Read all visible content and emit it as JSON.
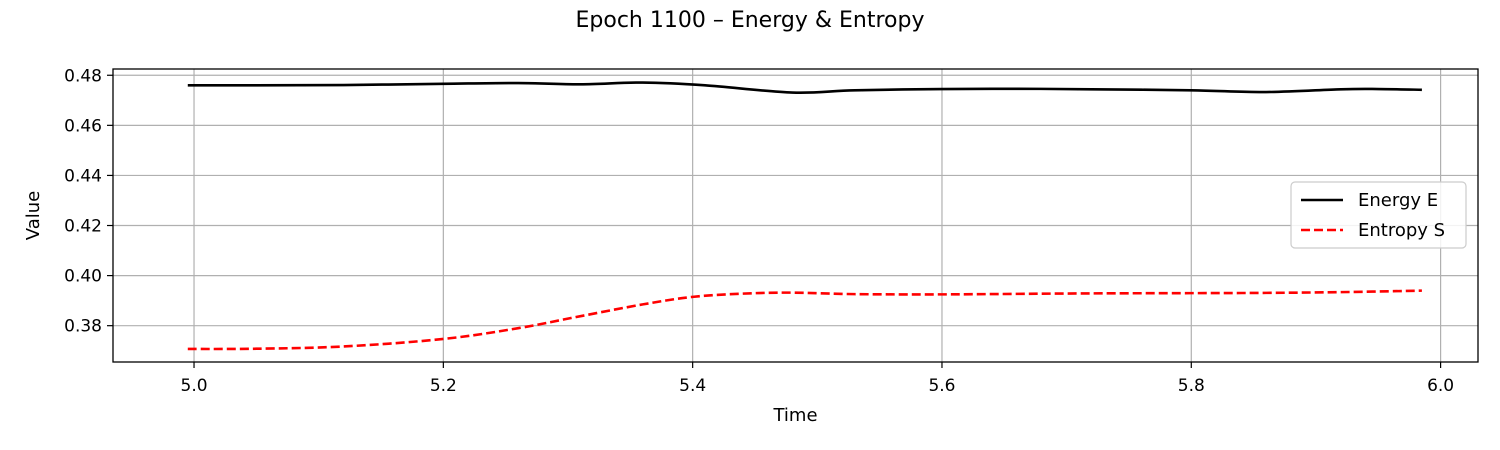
{
  "chart_data": {
    "type": "line",
    "title": "Epoch 1100 – Energy & Entropy",
    "xlabel": "Time",
    "ylabel": "Value",
    "xlim": [
      4.935,
      6.03
    ],
    "ylim": [
      0.3655,
      0.4825
    ],
    "xticks": [
      5.0,
      5.2,
      5.4,
      5.6,
      5.8,
      6.0
    ],
    "yticks": [
      0.38,
      0.4,
      0.42,
      0.44,
      0.46,
      0.48
    ],
    "grid": true,
    "legend": {
      "placement": "center-right"
    },
    "series": [
      {
        "name": "Energy E",
        "color": "#000000",
        "dash": "solid",
        "x": [
          4.995,
          5.05,
          5.12,
          5.2,
          5.26,
          5.31,
          5.36,
          5.41,
          5.48,
          5.53,
          5.6,
          5.66,
          5.72,
          5.8,
          5.86,
          5.92,
          5.95,
          5.985
        ],
        "y": [
          0.476,
          0.476,
          0.4761,
          0.4766,
          0.4769,
          0.4764,
          0.4771,
          0.476,
          0.4731,
          0.474,
          0.4745,
          0.4746,
          0.4744,
          0.474,
          0.4733,
          0.4744,
          0.4745,
          0.4742
        ]
      },
      {
        "name": "Entropy S",
        "color": "#ff0000",
        "dash": "dashed",
        "x": [
          4.995,
          5.05,
          5.12,
          5.2,
          5.26,
          5.31,
          5.36,
          5.4,
          5.44,
          5.48,
          5.53,
          5.6,
          5.66,
          5.72,
          5.8,
          5.86,
          5.92,
          5.985
        ],
        "y": [
          0.3707,
          0.3708,
          0.3717,
          0.3747,
          0.379,
          0.3838,
          0.3885,
          0.3915,
          0.3928,
          0.3932,
          0.3926,
          0.3925,
          0.3927,
          0.3929,
          0.393,
          0.3931,
          0.3934,
          0.394
        ]
      }
    ]
  }
}
